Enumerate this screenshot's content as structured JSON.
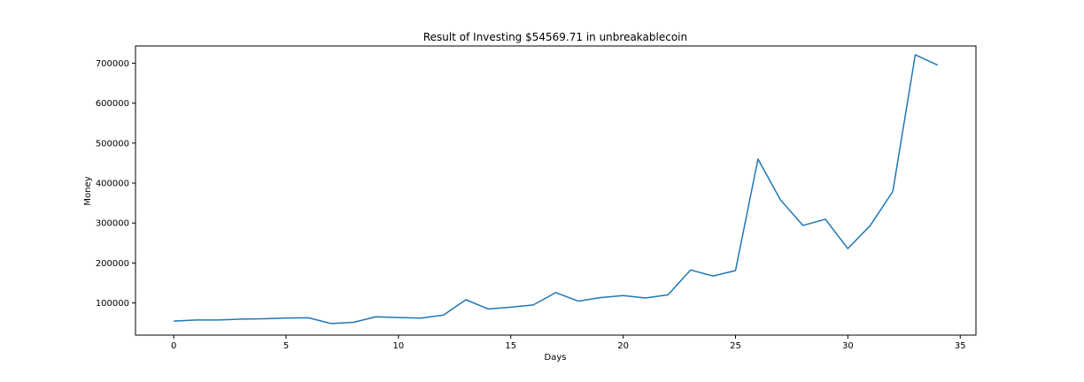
{
  "chart_data": {
    "type": "line",
    "title": "Result of Investing $54569.71 in unbreakablecoin",
    "xlabel": "Days",
    "ylabel": "Money",
    "xlim": [
      -1.7,
      35.7
    ],
    "ylim": [
      19500,
      743000
    ],
    "xticks": [
      0,
      5,
      10,
      15,
      20,
      25,
      30,
      35
    ],
    "yticks": [
      100000,
      200000,
      300000,
      400000,
      500000,
      600000,
      700000
    ],
    "grid": false,
    "color": "#1f77b4",
    "series": [
      {
        "x": [
          0,
          1,
          2,
          3,
          4,
          5,
          6,
          7,
          8,
          9,
          10,
          11,
          12,
          13,
          14,
          15,
          16,
          17,
          18,
          19,
          20,
          21,
          22,
          23,
          24,
          25,
          26,
          27,
          28,
          29,
          30,
          31,
          32,
          33,
          34
        ],
        "values": [
          54570,
          57500,
          57500,
          59500,
          60500,
          62500,
          63000,
          48500,
          51500,
          65500,
          63500,
          62000,
          69500,
          108000,
          85000,
          89500,
          95000,
          126000,
          104500,
          113500,
          118500,
          112500,
          120500,
          182500,
          167500,
          181000,
          460000,
          358000,
          294000,
          309500,
          236000,
          294000,
          379000,
          721000,
          695000
        ]
      }
    ]
  }
}
